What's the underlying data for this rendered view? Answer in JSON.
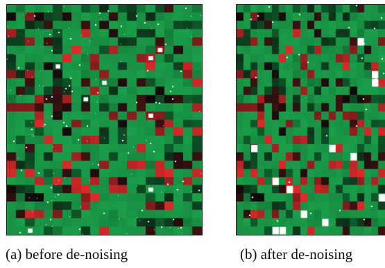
{
  "figure": {
    "panels": [
      {
        "caption": "(a) before de-noising"
      },
      {
        "caption": "(b) after de-noising"
      }
    ],
    "heatmap": {
      "rows": 28,
      "cols": 21,
      "colors": {
        "green": "#1a9e4a",
        "dark_green": "#0d5b2a",
        "red": "#e02a2a",
        "dark_red": "#7a1a1a",
        "black": "#0b0b0b",
        "white": "#ffffff"
      }
    }
  }
}
